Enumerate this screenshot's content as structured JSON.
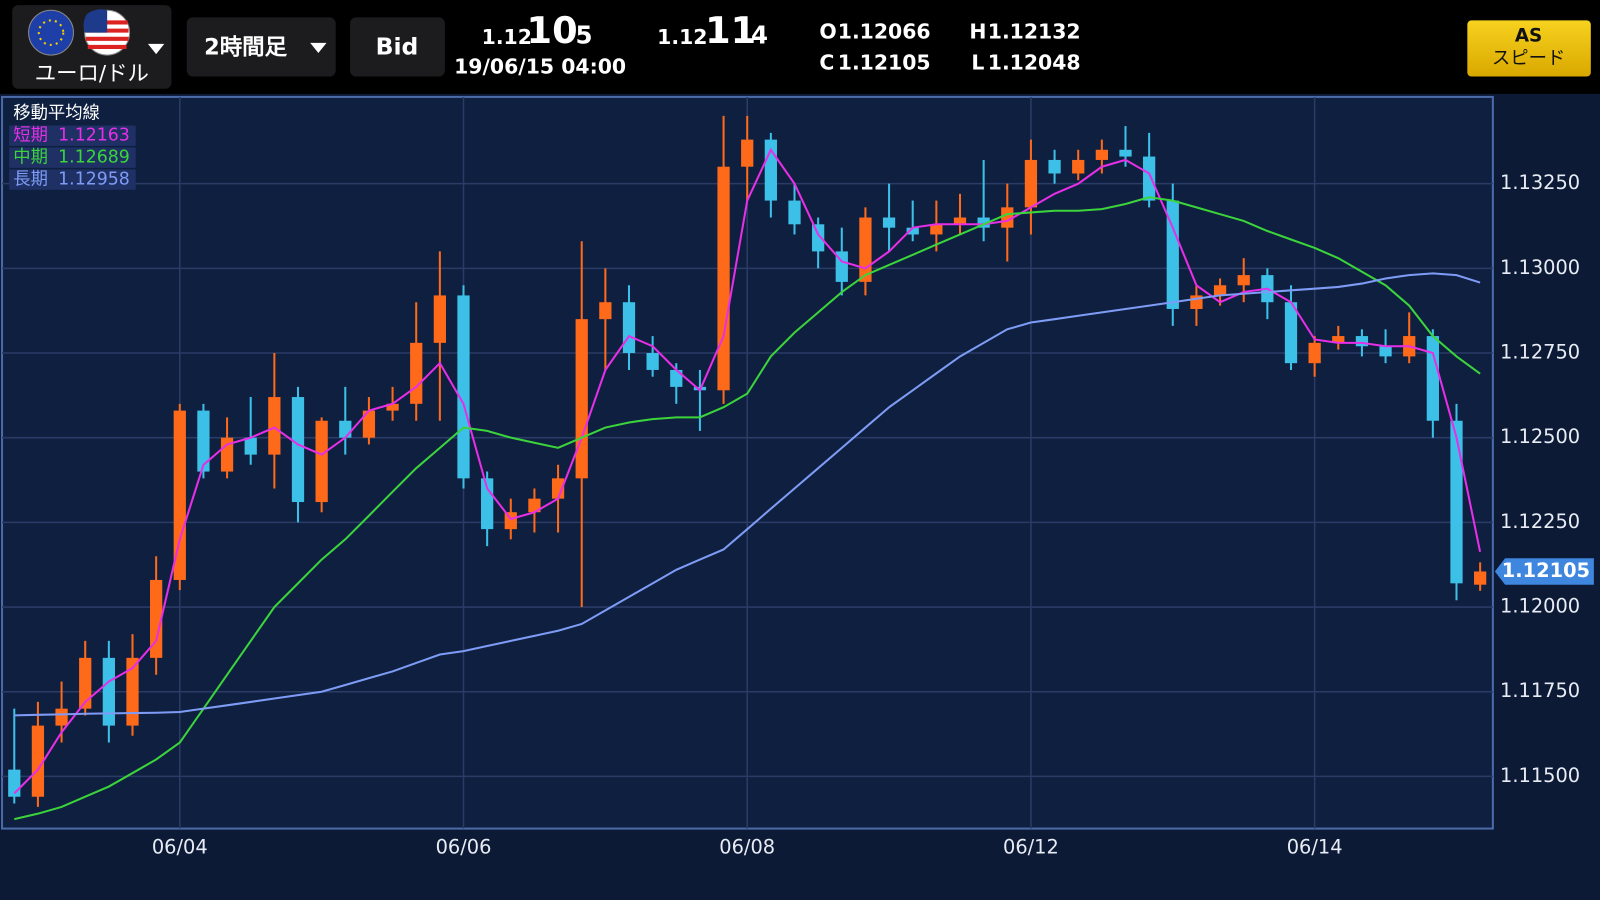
{
  "header": {
    "pair": "ユーロ/ドル",
    "timeframe": "2時間足",
    "side": "Bid",
    "bid": {
      "head": "1.12",
      "big": "10",
      "tail": "5"
    },
    "ask": {
      "head": "1.12",
      "big": "11",
      "tail": "4"
    },
    "datetime": "19/06/15 04:00",
    "ohlc": [
      {
        "key": "O",
        "value": "1.12066"
      },
      {
        "key": "H",
        "value": "1.12132"
      },
      {
        "key": "C",
        "value": "1.12105"
      },
      {
        "key": "L",
        "value": "1.12048"
      }
    ],
    "button": {
      "line1": "AS",
      "line2": "スピード"
    }
  },
  "chart_data": {
    "type": "candlestick",
    "legend_title": "移動平均線",
    "categories": [
      null,
      null,
      null,
      null,
      null,
      null,
      null,
      "06/04",
      null,
      null,
      null,
      null,
      null,
      null,
      null,
      null,
      null,
      null,
      null,
      "06/06",
      null,
      null,
      null,
      null,
      null,
      null,
      null,
      null,
      null,
      null,
      null,
      "06/08",
      null,
      null,
      null,
      null,
      null,
      null,
      null,
      null,
      null,
      null,
      null,
      "06/12",
      null,
      null,
      null,
      null,
      null,
      null,
      null,
      null,
      null,
      null,
      null,
      "06/14",
      null,
      null,
      null,
      null,
      null,
      null,
      null
    ],
    "open": [
      1.1152,
      1.1144,
      1.1165,
      1.117,
      1.1185,
      1.1165,
      1.1185,
      1.1208,
      1.1258,
      1.124,
      1.125,
      1.1245,
      1.1262,
      1.1231,
      1.1255,
      1.125,
      1.1258,
      1.126,
      1.1278,
      1.1292,
      1.1238,
      1.1223,
      1.1228,
      1.1232,
      1.1238,
      1.1285,
      1.129,
      1.1275,
      1.127,
      1.1265,
      1.1264,
      1.133,
      1.1338,
      1.132,
      1.1313,
      1.1305,
      1.1296,
      1.1315,
      1.1312,
      1.131,
      1.1313,
      1.1315,
      1.1312,
      1.1318,
      1.1332,
      1.1328,
      1.1332,
      1.1335,
      1.1333,
      1.132,
      1.1288,
      1.1292,
      1.1295,
      1.1298,
      1.129,
      1.1272,
      1.1278,
      1.128,
      1.1277,
      1.1274,
      1.128,
      1.1255,
      1.12066
    ],
    "high": [
      1.117,
      1.1172,
      1.1178,
      1.119,
      1.119,
      1.1192,
      1.1215,
      1.126,
      1.126,
      1.1256,
      1.1262,
      1.1275,
      1.1265,
      1.1256,
      1.1265,
      1.1262,
      1.1265,
      1.129,
      1.1305,
      1.1295,
      1.124,
      1.1232,
      1.1235,
      1.1242,
      1.1308,
      1.13,
      1.1295,
      1.128,
      1.1272,
      1.127,
      1.1345,
      1.1345,
      1.134,
      1.1325,
      1.1315,
      1.1312,
      1.1318,
      1.1325,
      1.132,
      1.132,
      1.1322,
      1.1332,
      1.1325,
      1.1338,
      1.1335,
      1.1335,
      1.1338,
      1.1342,
      1.134,
      1.1325,
      1.1295,
      1.1297,
      1.1303,
      1.13,
      1.1295,
      1.128,
      1.1283,
      1.1282,
      1.1282,
      1.1287,
      1.1282,
      1.126,
      1.12132
    ],
    "low": [
      1.1142,
      1.1141,
      1.116,
      1.1168,
      1.116,
      1.1162,
      1.118,
      1.1205,
      1.1238,
      1.1238,
      1.1242,
      1.1235,
      1.1225,
      1.1228,
      1.1245,
      1.1248,
      1.1255,
      1.1255,
      1.1255,
      1.1235,
      1.1218,
      1.122,
      1.1222,
      1.1222,
      1.12,
      1.127,
      1.127,
      1.1268,
      1.126,
      1.1252,
      1.126,
      1.132,
      1.1315,
      1.131,
      1.13,
      1.1292,
      1.1292,
      1.1305,
      1.1308,
      1.1305,
      1.131,
      1.1308,
      1.1302,
      1.131,
      1.1325,
      1.1326,
      1.1328,
      1.133,
      1.1318,
      1.1283,
      1.1283,
      1.1289,
      1.129,
      1.1285,
      1.127,
      1.1268,
      1.1276,
      1.1274,
      1.1272,
      1.1272,
      1.125,
      1.1202,
      1.12048
    ],
    "close": [
      1.1144,
      1.1165,
      1.117,
      1.1185,
      1.1165,
      1.1185,
      1.1208,
      1.1258,
      1.124,
      1.125,
      1.1245,
      1.1262,
      1.1231,
      1.1255,
      1.125,
      1.1258,
      1.126,
      1.1278,
      1.1292,
      1.1238,
      1.1223,
      1.1228,
      1.1232,
      1.1238,
      1.1285,
      1.129,
      1.1275,
      1.127,
      1.1265,
      1.1264,
      1.133,
      1.1338,
      1.132,
      1.1313,
      1.1305,
      1.1296,
      1.1315,
      1.1312,
      1.131,
      1.1313,
      1.1315,
      1.1312,
      1.1318,
      1.1332,
      1.1328,
      1.1332,
      1.1335,
      1.1333,
      1.132,
      1.1288,
      1.1292,
      1.1295,
      1.1298,
      1.129,
      1.1272,
      1.1278,
      1.128,
      1.1277,
      1.1274,
      1.128,
      1.1255,
      1.1207,
      1.12105
    ],
    "up_color": "#ff6a1a",
    "down_color": "#3cc0e8",
    "series": [
      {
        "name": "短期",
        "value_label": "1.12163",
        "color": "#e62fe6",
        "values": [
          1.1145,
          1.1152,
          1.1163,
          1.1172,
          1.1178,
          1.1182,
          1.119,
          1.122,
          1.1242,
          1.1248,
          1.125,
          1.1253,
          1.1248,
          1.1245,
          1.125,
          1.1258,
          1.126,
          1.1265,
          1.1272,
          1.126,
          1.1235,
          1.1226,
          1.1228,
          1.1232,
          1.125,
          1.127,
          1.128,
          1.1277,
          1.127,
          1.1264,
          1.128,
          1.132,
          1.1335,
          1.1325,
          1.131,
          1.1302,
          1.13,
          1.1305,
          1.1312,
          1.1313,
          1.1313,
          1.1313,
          1.1314,
          1.1318,
          1.1322,
          1.1325,
          1.133,
          1.1332,
          1.1328,
          1.1312,
          1.1295,
          1.129,
          1.1293,
          1.1294,
          1.129,
          1.1279,
          1.1278,
          1.1278,
          1.1277,
          1.1277,
          1.1275,
          1.125,
          1.12163
        ]
      },
      {
        "name": "中期",
        "value_label": "1.12689",
        "color": "#3bd43b",
        "values": [
          1.11374,
          1.1139,
          1.1141,
          1.1144,
          1.1147,
          1.1151,
          1.1155,
          1.116,
          1.117,
          1.118,
          1.119,
          1.12,
          1.1207,
          1.1214,
          1.122,
          1.1227,
          1.1234,
          1.1241,
          1.1247,
          1.1253,
          1.1252,
          1.125,
          1.12485,
          1.1247,
          1.125,
          1.1253,
          1.12545,
          1.12555,
          1.1256,
          1.1256,
          1.1259,
          1.1263,
          1.1274,
          1.1281,
          1.1287,
          1.1293,
          1.1298,
          1.1301,
          1.1304,
          1.1307,
          1.131,
          1.1313,
          1.1316,
          1.13165,
          1.1317,
          1.1317,
          1.13175,
          1.1319,
          1.1321,
          1.132,
          1.1318,
          1.1316,
          1.1314,
          1.1311,
          1.13085,
          1.1306,
          1.1303,
          1.1299,
          1.1295,
          1.1289,
          1.128,
          1.1274,
          1.12689
        ]
      },
      {
        "name": "長期",
        "value_label": "1.12958",
        "color": "#7e9cf5",
        "values": [
          1.1168,
          1.11682,
          1.11683,
          1.11685,
          1.11686,
          1.11687,
          1.11688,
          1.1169,
          1.117,
          1.1171,
          1.1172,
          1.1173,
          1.1174,
          1.1175,
          1.1177,
          1.1179,
          1.1181,
          1.11835,
          1.1186,
          1.1187,
          1.11885,
          1.119,
          1.11915,
          1.1193,
          1.1195,
          1.1199,
          1.1203,
          1.1207,
          1.1211,
          1.1214,
          1.1217,
          1.1223,
          1.1229,
          1.1235,
          1.1241,
          1.1247,
          1.1253,
          1.1259,
          1.1264,
          1.1269,
          1.1274,
          1.1278,
          1.1282,
          1.1284,
          1.1285,
          1.1286,
          1.1287,
          1.1288,
          1.1289,
          1.129,
          1.1291,
          1.1292,
          1.12925,
          1.1293,
          1.12935,
          1.1294,
          1.12945,
          1.12955,
          1.1297,
          1.1298,
          1.12985,
          1.1298,
          1.12958
        ]
      }
    ],
    "ylim": [
      1.11346,
      1.13506
    ],
    "yticks": [
      {
        "value": 1.115,
        "label": "1.11500"
      },
      {
        "value": 1.1175,
        "label": "1.11750"
      },
      {
        "value": 1.12,
        "label": "1.12000"
      },
      {
        "value": 1.1225,
        "label": "1.12250"
      },
      {
        "value": 1.125,
        "label": "1.12500"
      },
      {
        "value": 1.1275,
        "label": "1.12750"
      },
      {
        "value": 1.13,
        "label": "1.13000"
      },
      {
        "value": 1.1325,
        "label": "1.13250"
      }
    ],
    "current_price": {
      "value": 1.12105,
      "label": "1.12105"
    },
    "grid": true
  }
}
